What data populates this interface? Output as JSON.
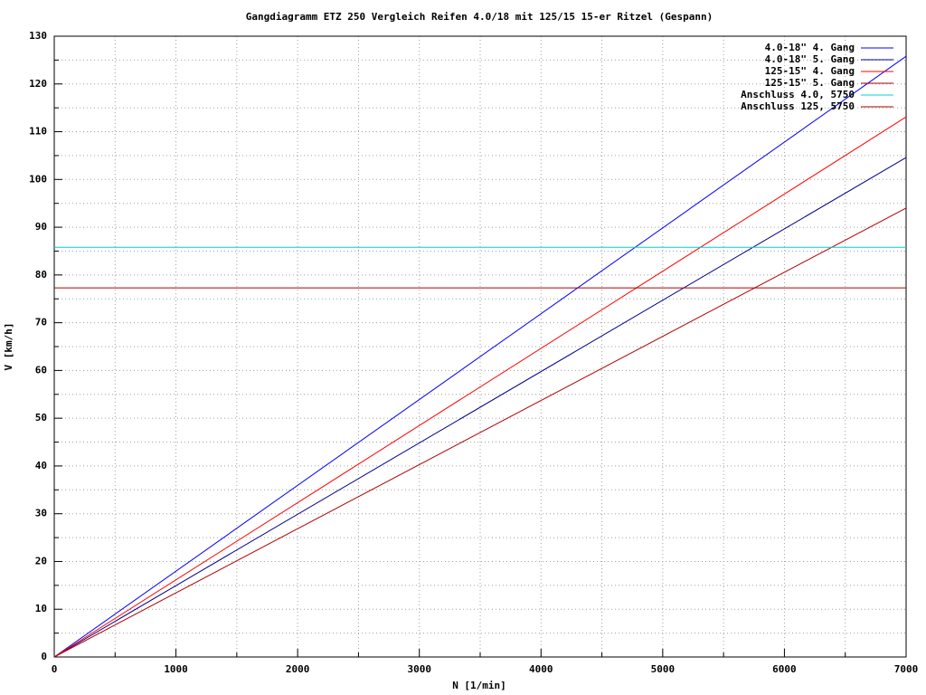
{
  "chart_data": {
    "type": "line",
    "title": "Gangdiagramm ETZ 250 Vergleich Reifen 4.0/18 mit 125/15 15-er Ritzel (Gespann)",
    "x_label": "N [1/min]",
    "y_label": "V [km/h]",
    "x": [
      0,
      7000
    ],
    "series": [
      {
        "name": "4.0-18\" 4. Gang",
        "color": "#0000ff",
        "values": [
          0,
          125.8
        ]
      },
      {
        "name": "4.0-18\" 5. Gang",
        "color": "#00008b",
        "values": [
          0,
          104.6
        ]
      },
      {
        "name": "125-15\" 4. Gang",
        "color": "#ff0000",
        "values": [
          0,
          113.1
        ]
      },
      {
        "name": "125-15\" 5. Gang",
        "color": "#b00000",
        "values": [
          0,
          94.0
        ]
      },
      {
        "name": "Anschluss 4.0, 5750",
        "color": "#00d0d0",
        "values": [
          85.8,
          85.8
        ]
      },
      {
        "name": "Anschluss 125, 5750",
        "color": "#b00000",
        "values": [
          77.3,
          77.3
        ]
      }
    ],
    "xlim": [
      0,
      7000
    ],
    "xticks": [
      0,
      1000,
      2000,
      3000,
      4000,
      5000,
      6000,
      7000
    ],
    "ylim": [
      0,
      130
    ],
    "yticks": [
      0,
      10,
      20,
      30,
      40,
      50,
      60,
      70,
      80,
      90,
      100,
      110,
      120,
      130
    ],
    "grid": true,
    "minor_grid": true,
    "legend": "top-right"
  }
}
